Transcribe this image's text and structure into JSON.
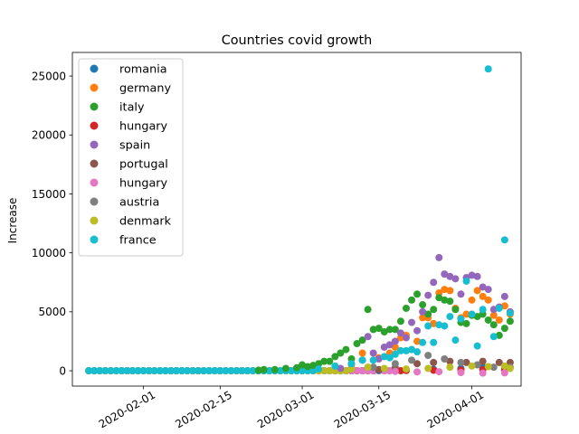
{
  "chart_data": {
    "type": "scatter",
    "title": "Countries covid growth",
    "xlabel": "",
    "ylabel": "Increase",
    "xlim": [
      "2020-01-19",
      "2020-04-10"
    ],
    "ylim": [
      -1300,
      27000
    ],
    "yticks": [
      0,
      5000,
      10000,
      15000,
      20000,
      25000
    ],
    "xticks": [
      "2020-02-01",
      "2020-02-15",
      "2020-03-01",
      "2020-03-15",
      "2020-04-01"
    ],
    "x_tick_rotation": 30,
    "legend_position": "upper-left",
    "grid": false,
    "series": [
      {
        "name": "romania",
        "color": "#1f77b4",
        "points": [
          [
            "2020-03-15",
            30
          ],
          [
            "2020-03-20",
            50
          ],
          [
            "2020-03-25",
            120
          ],
          [
            "2020-03-30",
            200
          ],
          [
            "2020-04-03",
            300
          ],
          [
            "2020-04-07",
            250
          ]
        ]
      },
      {
        "name": "germany",
        "color": "#ff7f0e",
        "points": [
          [
            "2020-03-10",
            500
          ],
          [
            "2020-03-12",
            1500
          ],
          [
            "2020-03-15",
            1100
          ],
          [
            "2020-03-17",
            1500
          ],
          [
            "2020-03-18",
            2000
          ],
          [
            "2020-03-19",
            2800
          ],
          [
            "2020-03-20",
            3000
          ],
          [
            "2020-03-21",
            1800
          ],
          [
            "2020-03-22",
            2500
          ],
          [
            "2020-03-23",
            4500
          ],
          [
            "2020-03-24",
            4500
          ],
          [
            "2020-03-25",
            4000
          ],
          [
            "2020-03-26",
            6600
          ],
          [
            "2020-03-27",
            6900
          ],
          [
            "2020-03-28",
            6800
          ],
          [
            "2020-03-29",
            5300
          ],
          [
            "2020-03-30",
            4500
          ],
          [
            "2020-03-31",
            4800
          ],
          [
            "2020-04-01",
            6000
          ],
          [
            "2020-04-02",
            6800
          ],
          [
            "2020-04-03",
            6300
          ],
          [
            "2020-04-04",
            6000
          ],
          [
            "2020-04-05",
            4700
          ],
          [
            "2020-04-06",
            4300
          ],
          [
            "2020-04-07",
            5500
          ],
          [
            "2020-04-08",
            4800
          ]
        ]
      },
      {
        "name": "italy",
        "color": "#2ca02c",
        "points": [
          [
            "2020-02-22",
            50
          ],
          [
            "2020-02-23",
            100
          ],
          [
            "2020-02-25",
            100
          ],
          [
            "2020-02-27",
            200
          ],
          [
            "2020-02-29",
            250
          ],
          [
            "2020-03-01",
            500
          ],
          [
            "2020-03-02",
            350
          ],
          [
            "2020-03-03",
            450
          ],
          [
            "2020-03-04",
            600
          ],
          [
            "2020-03-05",
            800
          ],
          [
            "2020-03-06",
            800
          ],
          [
            "2020-03-07",
            1200
          ],
          [
            "2020-03-08",
            1500
          ],
          [
            "2020-03-09",
            1800
          ],
          [
            "2020-03-10",
            1000
          ],
          [
            "2020-03-11",
            2300
          ],
          [
            "2020-03-12",
            2600
          ],
          [
            "2020-03-13",
            5200
          ],
          [
            "2020-03-14",
            3500
          ],
          [
            "2020-03-15",
            3600
          ],
          [
            "2020-03-16",
            3300
          ],
          [
            "2020-03-17",
            3500
          ],
          [
            "2020-03-18",
            3500
          ],
          [
            "2020-03-19",
            4200
          ],
          [
            "2020-03-20",
            5300
          ],
          [
            "2020-03-21",
            6000
          ],
          [
            "2020-03-22",
            6500
          ],
          [
            "2020-03-23",
            5600
          ],
          [
            "2020-03-24",
            4800
          ],
          [
            "2020-03-25",
            5200
          ],
          [
            "2020-03-26",
            6200
          ],
          [
            "2020-03-27",
            6000
          ],
          [
            "2020-03-28",
            5900
          ],
          [
            "2020-03-29",
            5200
          ],
          [
            "2020-03-30",
            4100
          ],
          [
            "2020-03-31",
            4000
          ],
          [
            "2020-04-01",
            4700
          ],
          [
            "2020-04-02",
            4600
          ],
          [
            "2020-04-03",
            4800
          ],
          [
            "2020-04-04",
            4300
          ],
          [
            "2020-04-05",
            3900
          ],
          [
            "2020-04-06",
            3000
          ],
          [
            "2020-04-07",
            3600
          ],
          [
            "2020-04-08",
            4200
          ]
        ]
      },
      {
        "name": "hungary",
        "color": "#d62728",
        "points": [
          [
            "2020-03-20",
            20
          ],
          [
            "2020-03-25",
            40
          ],
          [
            "2020-03-30",
            60
          ],
          [
            "2020-04-03",
            80
          ],
          [
            "2020-04-07",
            70
          ]
        ]
      },
      {
        "name": "spain",
        "color": "#9467bd",
        "points": [
          [
            "2020-03-08",
            200
          ],
          [
            "2020-03-10",
            600
          ],
          [
            "2020-03-12",
            900
          ],
          [
            "2020-03-13",
            2900
          ],
          [
            "2020-03-14",
            1500
          ],
          [
            "2020-03-15",
            1000
          ],
          [
            "2020-03-16",
            2000
          ],
          [
            "2020-03-17",
            2200
          ],
          [
            "2020-03-18",
            2500
          ],
          [
            "2020-03-19",
            3200
          ],
          [
            "2020-03-20",
            2800
          ],
          [
            "2020-03-21",
            4100
          ],
          [
            "2020-03-22",
            3400
          ],
          [
            "2020-03-23",
            5000
          ],
          [
            "2020-03-24",
            6400
          ],
          [
            "2020-03-25",
            7500
          ],
          [
            "2020-03-26",
            9600
          ],
          [
            "2020-03-27",
            8200
          ],
          [
            "2020-03-28",
            8000
          ],
          [
            "2020-03-29",
            7800
          ],
          [
            "2020-03-30",
            6500
          ],
          [
            "2020-03-31",
            7900
          ],
          [
            "2020-04-01",
            8100
          ],
          [
            "2020-04-02",
            8000
          ],
          [
            "2020-04-03",
            7100
          ],
          [
            "2020-04-04",
            6900
          ],
          [
            "2020-04-05",
            5200
          ],
          [
            "2020-04-06",
            5400
          ],
          [
            "2020-04-07",
            6300
          ],
          [
            "2020-04-08",
            5000
          ]
        ]
      },
      {
        "name": "portugal",
        "color": "#8c564b",
        "points": [
          [
            "2020-03-15",
            100
          ],
          [
            "2020-03-18",
            250
          ],
          [
            "2020-03-22",
            600
          ],
          [
            "2020-03-25",
            700
          ],
          [
            "2020-03-28",
            800
          ],
          [
            "2020-03-31",
            700
          ],
          [
            "2020-04-03",
            800
          ],
          [
            "2020-04-06",
            700
          ],
          [
            "2020-04-08",
            700
          ]
        ]
      },
      {
        "name": "hungary",
        "color": "#e377c2",
        "points": [
          [
            "2020-03-18",
            -50
          ],
          [
            "2020-03-22",
            -100
          ],
          [
            "2020-03-26",
            -80
          ],
          [
            "2020-03-30",
            -150
          ],
          [
            "2020-04-03",
            -200
          ],
          [
            "2020-04-07",
            -180
          ]
        ]
      },
      {
        "name": "austria",
        "color": "#7f7f7f",
        "points": [
          [
            "2020-03-10",
            200
          ],
          [
            "2020-03-14",
            300
          ],
          [
            "2020-03-18",
            600
          ],
          [
            "2020-03-21",
            900
          ],
          [
            "2020-03-24",
            1300
          ],
          [
            "2020-03-27",
            1000
          ],
          [
            "2020-03-30",
            700
          ],
          [
            "2020-04-02",
            500
          ],
          [
            "2020-04-05",
            300
          ],
          [
            "2020-04-08",
            300
          ]
        ]
      },
      {
        "name": "denmark",
        "color": "#bcbd22",
        "points": [
          [
            "2020-03-10",
            150
          ],
          [
            "2020-03-13",
            300
          ],
          [
            "2020-03-16",
            200
          ],
          [
            "2020-03-20",
            150
          ],
          [
            "2020-03-24",
            200
          ],
          [
            "2020-03-28",
            300
          ],
          [
            "2020-04-01",
            400
          ],
          [
            "2020-04-04",
            350
          ],
          [
            "2020-04-07",
            400
          ],
          [
            "2020-04-08",
            200
          ]
        ]
      },
      {
        "name": "france",
        "color": "#17becf",
        "points": [
          [
            "2020-03-04",
            150
          ],
          [
            "2020-03-07",
            400
          ],
          [
            "2020-03-10",
            600
          ],
          [
            "2020-03-12",
            900
          ],
          [
            "2020-03-14",
            900
          ],
          [
            "2020-03-16",
            1200
          ],
          [
            "2020-03-17",
            1100
          ],
          [
            "2020-03-18",
            1400
          ],
          [
            "2020-03-19",
            1700
          ],
          [
            "2020-03-20",
            1700
          ],
          [
            "2020-03-21",
            1800
          ],
          [
            "2020-03-22",
            1600
          ],
          [
            "2020-03-23",
            2400
          ],
          [
            "2020-03-24",
            3800
          ],
          [
            "2020-03-25",
            2400
          ],
          [
            "2020-03-26",
            3900
          ],
          [
            "2020-03-27",
            3800
          ],
          [
            "2020-03-28",
            4600
          ],
          [
            "2020-03-29",
            2600
          ],
          [
            "2020-03-30",
            4400
          ],
          [
            "2020-03-31",
            7600
          ],
          [
            "2020-04-01",
            4800
          ],
          [
            "2020-04-02",
            2100
          ],
          [
            "2020-04-03",
            5200
          ],
          [
            "2020-04-04",
            25600
          ],
          [
            "2020-04-05",
            2900
          ],
          [
            "2020-04-06",
            5300
          ],
          [
            "2020-04-07",
            11100
          ],
          [
            "2020-04-08",
            4900
          ]
        ]
      }
    ]
  }
}
